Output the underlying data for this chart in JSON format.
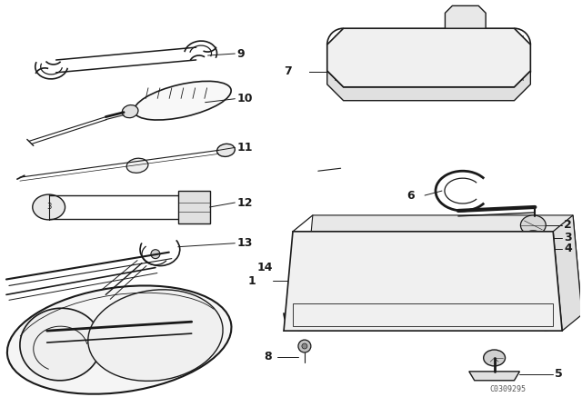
{
  "bg_color": "#ffffff",
  "line_color": "#1a1a1a",
  "watermark": "C0309295",
  "fig_w": 6.4,
  "fig_h": 4.48,
  "dpi": 100
}
